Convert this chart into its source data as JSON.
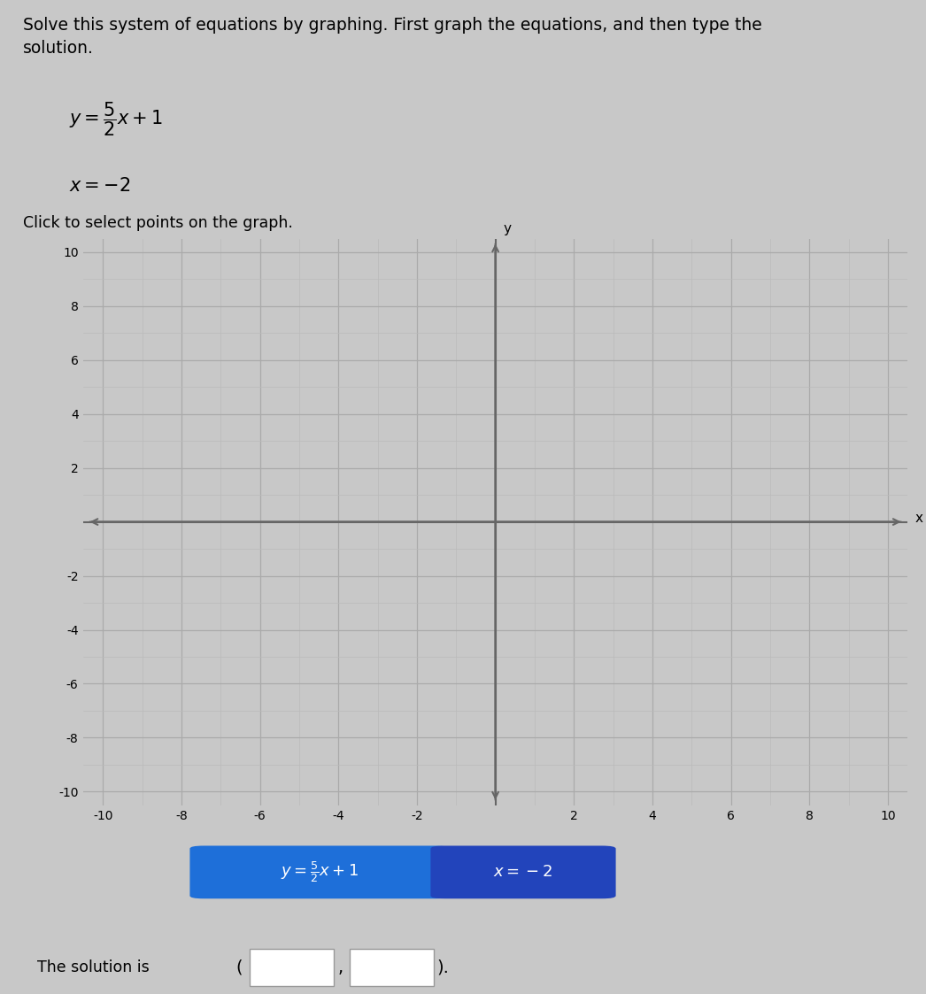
{
  "title_text": "Solve this system of equations by graphing. First graph the equations, and then type the\nsolution.",
  "slope": 2.5,
  "intercept": 1,
  "vertical_x": -2,
  "xlim": [
    -10.5,
    10.5
  ],
  "ylim": [
    -10.5,
    10.5
  ],
  "xticks": [
    -10,
    -8,
    -6,
    -4,
    -2,
    2,
    4,
    6,
    8,
    10
  ],
  "yticks": [
    -10,
    -8,
    -6,
    -4,
    -2,
    2,
    4,
    6,
    8,
    10
  ],
  "grid_major_color": "#aaaaaa",
  "grid_minor_color": "#bbbbbb",
  "axis_color": "#666666",
  "bg_color": "#c8c8c8",
  "plot_bg_color": "#c8c8c8",
  "line1_color": "#cc0000",
  "line2_color": "#cc0000",
  "btn1_color": "#1e6fd9",
  "btn2_color": "#2244bb",
  "btn_text_color": "#ffffff",
  "click_text": "Click to select points on the graph.",
  "x_label": "x",
  "y_label": "y",
  "eq1_latex": "y = \\frac{5}{2}x + 1",
  "eq2_latex": "x = {-}2",
  "btn1_latex": "y = \\frac{5}{2}x + 1",
  "btn2_latex": "x = -2"
}
